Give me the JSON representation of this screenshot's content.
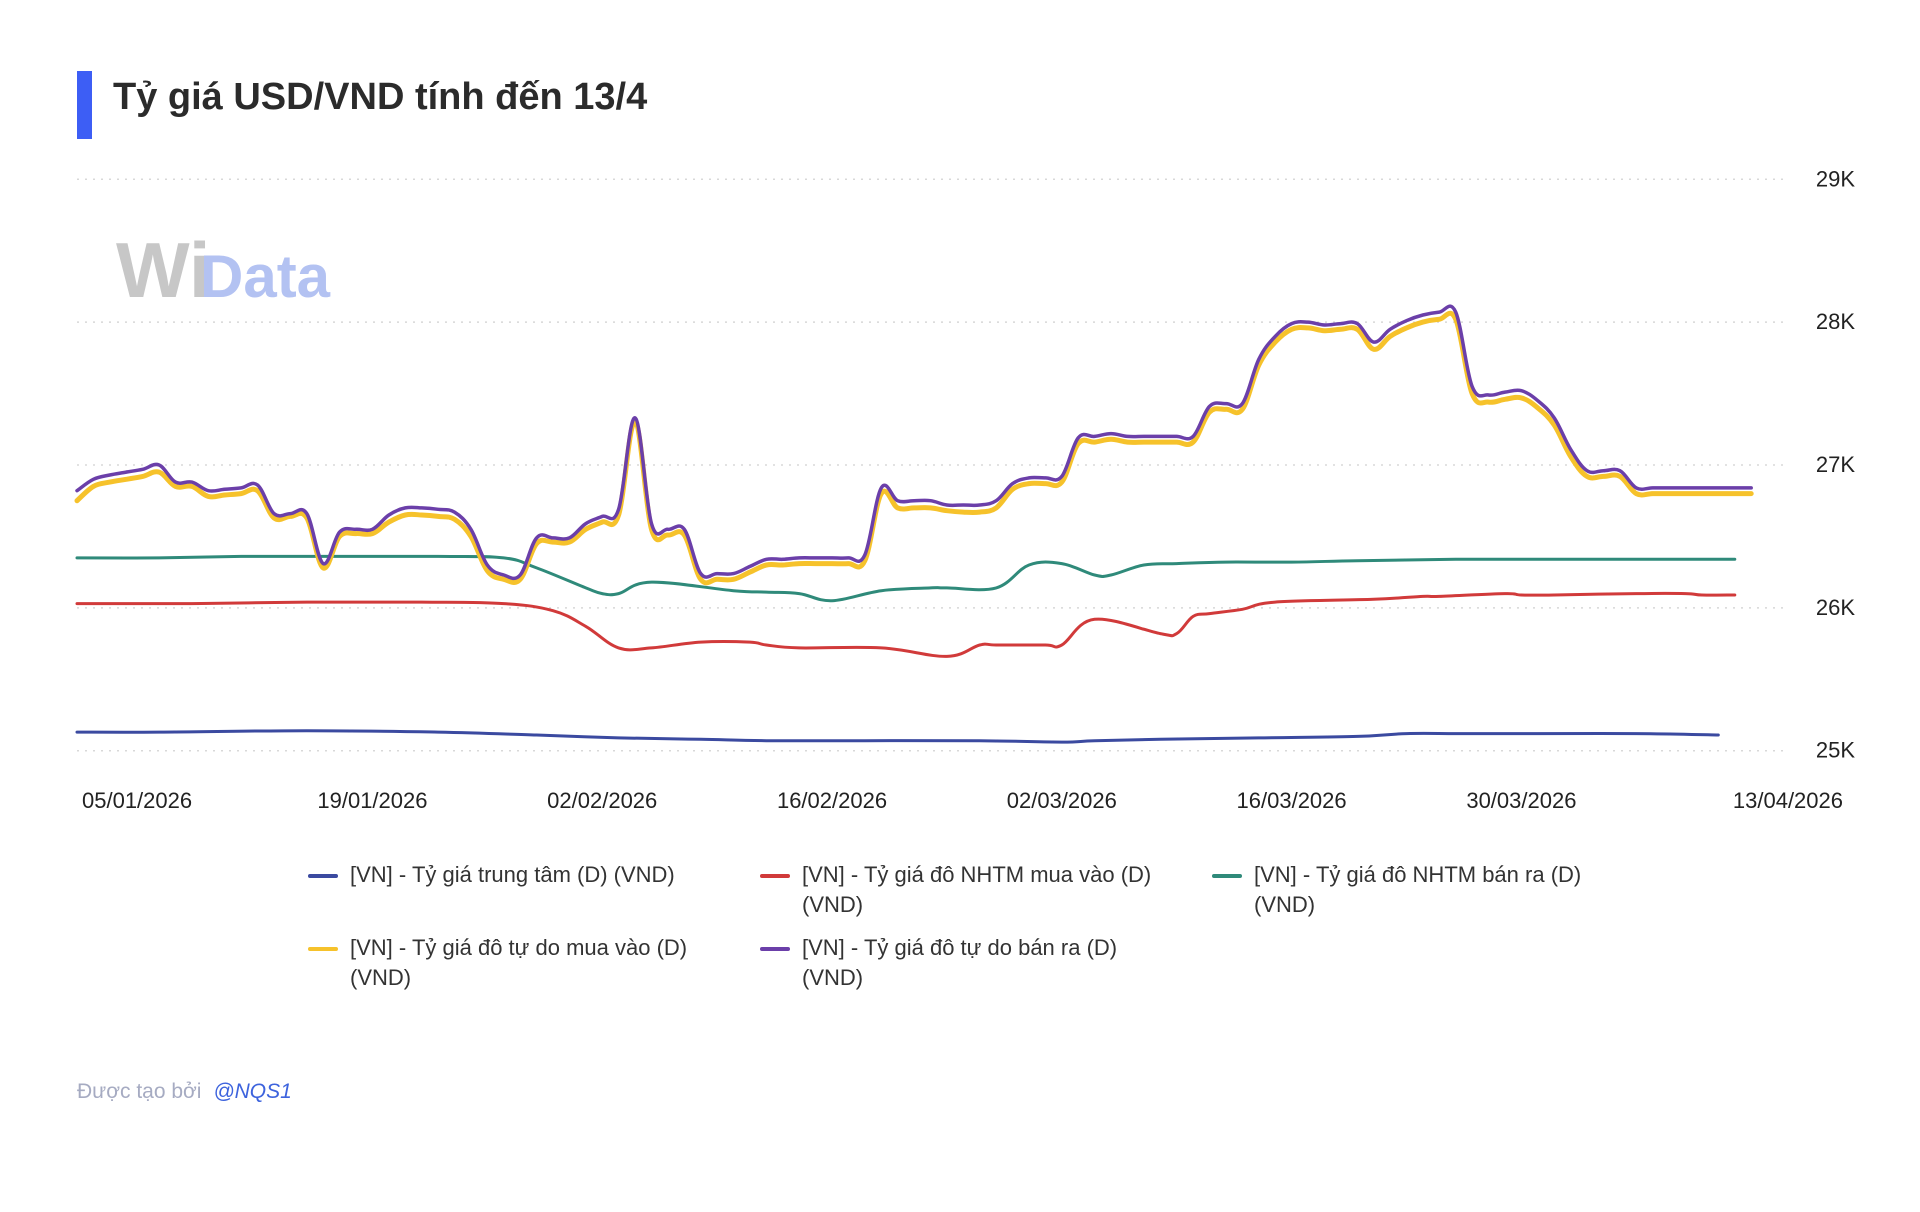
{
  "header": {
    "title": "Tỷ giá USD/VND tính đến 13/4",
    "accent_color": "#3d5ef5"
  },
  "watermark": {
    "part1": "Wi",
    "part2": "Data"
  },
  "footer": {
    "label": "Được tạo bởi",
    "handle": "@NQS1"
  },
  "chart_data": {
    "type": "line",
    "title": "Tỷ giá USD/VND tính đến 13/4",
    "xlabel": "",
    "ylabel": "",
    "y_axis_side": "right",
    "grid": "horizontal dotted",
    "legend_position": "bottom",
    "ylim": [
      24900,
      29100
    ],
    "y_ticks": [
      25000,
      26000,
      27000,
      28000,
      29000
    ],
    "y_tick_labels": [
      "25K",
      "26K",
      "27K",
      "28K",
      "29K"
    ],
    "x_tick_labels": [
      "05/01/2026",
      "19/01/2026",
      "02/02/2026",
      "16/02/2026",
      "02/03/2026",
      "16/03/2026",
      "30/03/2026",
      "13/04/2026"
    ],
    "x": [
      0,
      1,
      2,
      3,
      4,
      5,
      6,
      7,
      8,
      9,
      10,
      11,
      12,
      13,
      14,
      15,
      16,
      17,
      18,
      19,
      20,
      21,
      22,
      23,
      24,
      25,
      26,
      27,
      28,
      29,
      30,
      31,
      32,
      33,
      34,
      35,
      36,
      37,
      38,
      39,
      40,
      41,
      42,
      43,
      44,
      45,
      46,
      47,
      48,
      49,
      50,
      51,
      52,
      53,
      54,
      55,
      56,
      57,
      58,
      59,
      60,
      61,
      62,
      63,
      64,
      65,
      66,
      67,
      68,
      69,
      70,
      71,
      72,
      73,
      74,
      75,
      76,
      77,
      78,
      79,
      80,
      81,
      82,
      83,
      84,
      85,
      86,
      87,
      88,
      89,
      90,
      91,
      92,
      93,
      94,
      95,
      96,
      97,
      98,
      99,
      100,
      101,
      102,
      103,
      104
    ],
    "x_note": "days since 01/01/2026",
    "series": [
      {
        "name": "[VN] - Tỷ giá trung tâm (D) (VND)",
        "color": "#3b4aa0",
        "x": [
          0,
          5,
          14,
          22,
          28,
          33,
          38,
          42,
          48,
          55,
          60,
          62,
          66,
          72,
          78,
          81,
          84,
          87,
          89,
          95,
          100
        ],
        "values": [
          25130,
          25130,
          25140,
          25130,
          25110,
          25090,
          25080,
          25070,
          25070,
          25070,
          25060,
          25070,
          25080,
          25090,
          25100,
          25120,
          25120,
          25120,
          25120,
          25120,
          25110
        ]
      },
      {
        "name": "[VN] - Tỷ giá đô NHTM mua vào (D) (VND)",
        "color": "#d13a3a",
        "x": [
          0,
          7,
          14,
          21,
          26,
          29,
          31,
          33,
          35,
          38,
          41,
          42,
          44,
          49,
          53,
          55,
          56,
          59,
          60,
          62,
          66,
          67,
          68,
          69,
          71,
          73,
          79,
          82,
          83,
          87,
          88,
          90,
          95,
          98,
          99,
          101
        ],
        "values": [
          26030,
          26030,
          26040,
          26040,
          26030,
          25980,
          25870,
          25720,
          25720,
          25760,
          25760,
          25740,
          25720,
          25720,
          25660,
          25740,
          25740,
          25740,
          25740,
          25920,
          25820,
          25820,
          25940,
          25960,
          25990,
          26040,
          26060,
          26080,
          26080,
          26100,
          26090,
          26090,
          26100,
          26100,
          26090,
          26090
        ]
      },
      {
        "name": "[VN] - Tỷ giá đô NHTM bán ra (D) (VND)",
        "color": "#2f8a7a",
        "x": [
          0,
          5,
          10,
          15,
          22,
          26,
          28,
          31,
          32,
          33,
          35,
          40,
          42,
          44,
          46,
          49,
          52,
          53,
          56,
          58,
          60,
          62,
          63,
          65,
          67,
          70,
          74,
          78,
          84,
          90,
          95,
          101
        ],
        "values": [
          26350,
          26350,
          26360,
          26360,
          26360,
          26350,
          26280,
          26140,
          26100,
          26100,
          26180,
          26120,
          26110,
          26100,
          26050,
          26120,
          26140,
          26140,
          26140,
          26300,
          26310,
          26230,
          26230,
          26300,
          26310,
          26320,
          26320,
          26330,
          26340,
          26340,
          26340,
          26340
        ]
      },
      {
        "name": "[VN] - Tỷ giá đô tự do mua vào (D) (VND)",
        "color": "#f6c22b",
        "x": [
          0,
          1,
          2,
          3,
          4,
          5,
          6,
          7,
          8,
          9,
          10,
          11,
          12,
          13,
          14,
          15,
          16,
          17,
          18,
          19,
          20,
          21,
          22,
          23,
          24,
          25,
          26,
          27,
          28,
          29,
          30,
          31,
          32,
          33,
          34,
          35,
          36,
          37,
          38,
          39,
          40,
          41,
          42,
          43,
          44,
          45,
          46,
          47,
          48,
          49,
          50,
          51,
          52,
          53,
          54,
          55,
          56,
          57,
          58,
          59,
          60,
          61,
          62,
          63,
          64,
          65,
          66,
          67,
          68,
          69,
          70,
          71,
          72,
          73,
          74,
          75,
          76,
          77,
          78,
          79,
          80,
          81,
          82,
          83,
          84,
          85,
          86,
          87,
          88,
          89,
          90,
          91,
          92,
          93,
          94,
          95,
          96,
          97,
          98,
          99,
          100,
          101,
          102
        ],
        "values": [
          26750,
          26850,
          26880,
          26900,
          26920,
          26950,
          26850,
          26850,
          26780,
          26790,
          26800,
          26820,
          26630,
          26640,
          26630,
          26280,
          26500,
          26520,
          26520,
          26600,
          26650,
          26650,
          26640,
          26620,
          26500,
          26260,
          26200,
          26200,
          26450,
          26460,
          26460,
          26550,
          26600,
          26650,
          27300,
          26550,
          26510,
          26510,
          26200,
          26200,
          26200,
          26250,
          26300,
          26300,
          26310,
          26310,
          26310,
          26310,
          26330,
          26800,
          26700,
          26700,
          26700,
          26680,
          26670,
          26670,
          26700,
          26830,
          26870,
          26870,
          26880,
          27150,
          27160,
          27180,
          27160,
          27160,
          27160,
          27160,
          27160,
          27370,
          27390,
          27390,
          27700,
          27860,
          27950,
          27960,
          27940,
          27950,
          27950,
          27810,
          27900,
          27960,
          28000,
          28020,
          28020,
          27500,
          27440,
          27460,
          27470,
          27400,
          27280,
          27060,
          26920,
          26920,
          26920,
          26800,
          26800,
          26800,
          26800,
          26800,
          26800,
          26800,
          26800
        ]
      },
      {
        "name": "[VN] - Tỷ giá đô tự do bán ra (D) (VND)",
        "color": "#6b3fa9",
        "x": [
          0,
          1,
          2,
          3,
          4,
          5,
          6,
          7,
          8,
          9,
          10,
          11,
          12,
          13,
          14,
          15,
          16,
          17,
          18,
          19,
          20,
          21,
          22,
          23,
          24,
          25,
          26,
          27,
          28,
          29,
          30,
          31,
          32,
          33,
          34,
          35,
          36,
          37,
          38,
          39,
          40,
          41,
          42,
          43,
          44,
          45,
          46,
          47,
          48,
          49,
          50,
          51,
          52,
          53,
          54,
          55,
          56,
          57,
          58,
          59,
          60,
          61,
          62,
          63,
          64,
          65,
          66,
          67,
          68,
          69,
          70,
          71,
          72,
          73,
          74,
          75,
          76,
          77,
          78,
          79,
          80,
          81,
          82,
          83,
          84,
          85,
          86,
          87,
          88,
          89,
          90,
          91,
          92,
          93,
          94,
          95,
          96,
          97,
          98,
          99,
          100,
          101,
          102
        ],
        "values": [
          26820,
          26900,
          26930,
          26950,
          26970,
          27000,
          26880,
          26880,
          26820,
          26830,
          26840,
          26860,
          26660,
          26660,
          26660,
          26310,
          26530,
          26550,
          26550,
          26650,
          26700,
          26700,
          26690,
          26670,
          26550,
          26300,
          26230,
          26230,
          26490,
          26490,
          26490,
          26590,
          26640,
          26690,
          27330,
          26590,
          26550,
          26550,
          26240,
          26240,
          26240,
          26290,
          26340,
          26340,
          26350,
          26350,
          26350,
          26350,
          26370,
          26840,
          26750,
          26750,
          26750,
          26720,
          26720,
          26720,
          26750,
          26870,
          26910,
          26910,
          26920,
          27190,
          27200,
          27220,
          27200,
          27200,
          27200,
          27200,
          27200,
          27410,
          27430,
          27430,
          27740,
          27900,
          27990,
          28000,
          27980,
          27990,
          27990,
          27860,
          27950,
          28010,
          28050,
          28070,
          28070,
          27550,
          27490,
          27510,
          27520,
          27450,
          27330,
          27110,
          26960,
          26960,
          26960,
          26840,
          26840,
          26840,
          26840,
          26840,
          26840,
          26840,
          26840
        ]
      }
    ]
  }
}
